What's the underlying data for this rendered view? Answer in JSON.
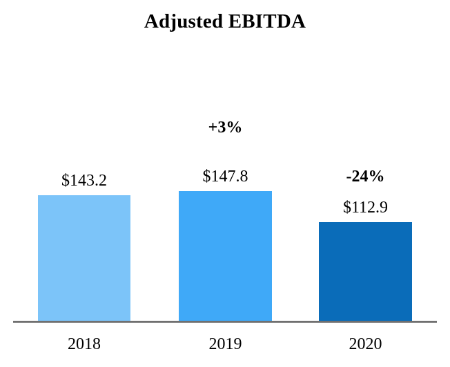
{
  "title": "Adjusted EBITDA",
  "chart_data": {
    "type": "bar",
    "title": "Adjusted EBITDA",
    "categories": [
      "2018",
      "2019",
      "2020"
    ],
    "values": [
      143.2,
      147.8,
      112.9
    ],
    "value_labels": [
      "$143.2",
      "$147.8",
      "$112.9"
    ],
    "change_labels": [
      "+3%",
      "-24%"
    ],
    "bar_colors": [
      "#7CC4F9",
      "#3FA9F8",
      "#0A6CB9"
    ],
    "axis_color": "#757575",
    "background": "#FFFFFF",
    "text_color": "#000000",
    "legend": "none",
    "grid": "off",
    "baseline": 0
  }
}
